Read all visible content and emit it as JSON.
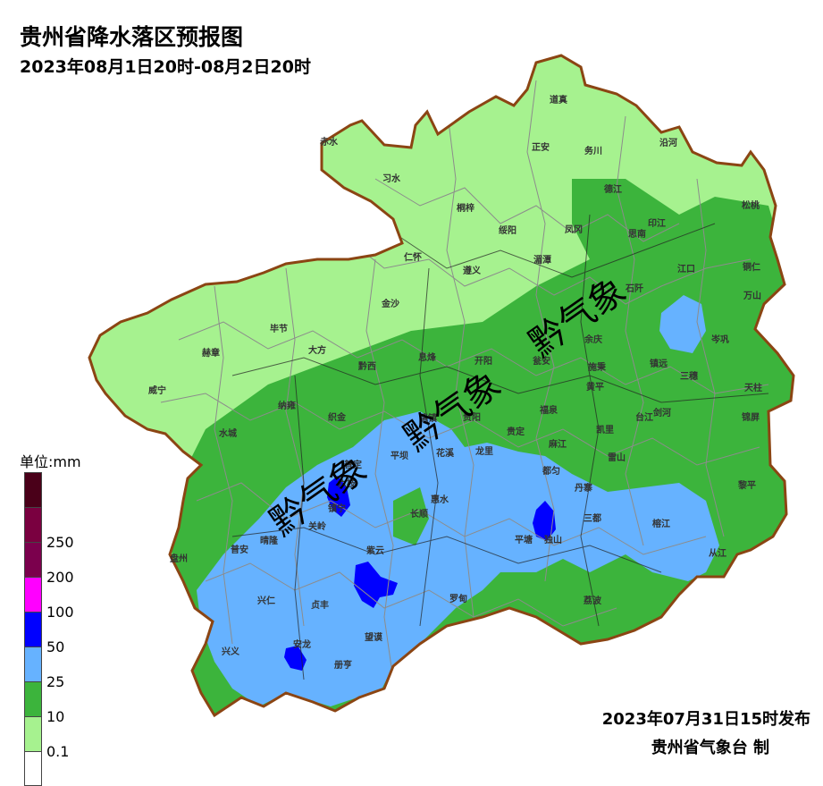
{
  "title": "贵州省降水落区预报图",
  "subtitle": "2023年08月1日20时-08月2日20时",
  "legend": {
    "unit": "单位:mm",
    "items": [
      {
        "label": "",
        "color": "#4a0019"
      },
      {
        "label": "250",
        "color": "#7a0040"
      },
      {
        "label": "200",
        "color": "#7b004d"
      },
      {
        "label": "100",
        "color": "#ff00ff"
      },
      {
        "label": "50",
        "color": "#0000ff"
      },
      {
        "label": "25",
        "color": "#66b2ff"
      },
      {
        "label": "10",
        "color": "#3cb43c"
      },
      {
        "label": "0.1",
        "color": "#a6f28f"
      },
      {
        "label": "",
        "color": "#ffffff"
      }
    ]
  },
  "issued": "2023年07月31日15时发布",
  "maker": "贵州省气象台 制",
  "watermark": "黔气象",
  "counties": [
    "道真",
    "赤水",
    "正安",
    "务川",
    "沿河",
    "习水",
    "桐梓",
    "德江",
    "松桃",
    "绥阳",
    "凤冈",
    "印江",
    "思南",
    "仁怀",
    "湄潭",
    "江口",
    "铜仁",
    "遵义",
    "石阡",
    "万山",
    "金沙",
    "毕节",
    "余庆",
    "赫章",
    "大方",
    "息烽",
    "开阳",
    "瓮安",
    "施秉",
    "镇远",
    "岑巩",
    "三穗",
    "威宁",
    "黔西",
    "黄平",
    "天柱",
    "纳雍",
    "织金",
    "清镇",
    "贵阳",
    "福泉",
    "凯里",
    "台江",
    "剑河",
    "锦屏",
    "水城",
    "平坝",
    "花溪",
    "贵定",
    "麻江",
    "雷山",
    "普定",
    "龙里",
    "都匀",
    "六枝",
    "镇宁",
    "惠水",
    "丹寨",
    "黎平",
    "盘州",
    "关岭",
    "长顺",
    "平塘",
    "独山",
    "三都",
    "榕江",
    "普安",
    "晴隆",
    "紫云",
    "从江",
    "兴仁",
    "贞丰",
    "罗甸",
    "荔波",
    "兴义",
    "安龙",
    "望谟",
    "册亨"
  ]
}
